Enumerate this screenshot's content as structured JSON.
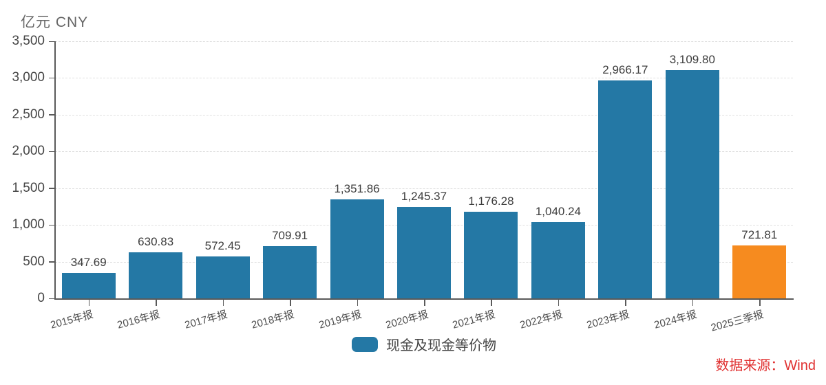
{
  "axis_unit": {
    "label": "亿元 CNY"
  },
  "legend": {
    "label": "现金及现金等价物",
    "swatch_color": "#2478A5"
  },
  "source": {
    "label": "数据来源：Wind",
    "color": "#E03030"
  },
  "chart_data": {
    "type": "bar",
    "title": "",
    "xlabel": "",
    "ylabel": "亿元 CNY",
    "categories": [
      "2015年报",
      "2016年报",
      "2017年报",
      "2018年报",
      "2019年报",
      "2020年报",
      "2021年报",
      "2022年报",
      "2023年报",
      "2024年报",
      "2025三季报"
    ],
    "values": [
      347.69,
      630.83,
      572.45,
      709.91,
      1351.86,
      1245.37,
      1176.28,
      1040.24,
      2966.17,
      3109.8,
      721.81
    ],
    "value_labels": [
      "347.69",
      "630.83",
      "572.45",
      "709.91",
      "1,351.86",
      "1,245.37",
      "1,176.28",
      "1,040.24",
      "2,966.17",
      "3,109.80",
      "721.81"
    ],
    "series_name": "现金及现金等价物",
    "ylim": [
      0,
      3500
    ],
    "yticks": [
      {
        "value": 0,
        "label": "0"
      },
      {
        "value": 500,
        "label": "500"
      },
      {
        "value": 1000,
        "label": "1,000"
      },
      {
        "value": 1500,
        "label": "1,500"
      },
      {
        "value": 2000,
        "label": "2,000"
      },
      {
        "value": 2500,
        "label": "2,500"
      },
      {
        "value": 3000,
        "label": "3,000"
      },
      {
        "value": 3500,
        "label": "3,500"
      }
    ],
    "grid": "horizontal-dashed",
    "legend_position": "bottom-center",
    "bar_color": "#2478A5",
    "highlight": {
      "index": 10,
      "color": "#F68B1F"
    },
    "axis_color": "#5A5A5A",
    "source": "数据来源：Wind"
  }
}
